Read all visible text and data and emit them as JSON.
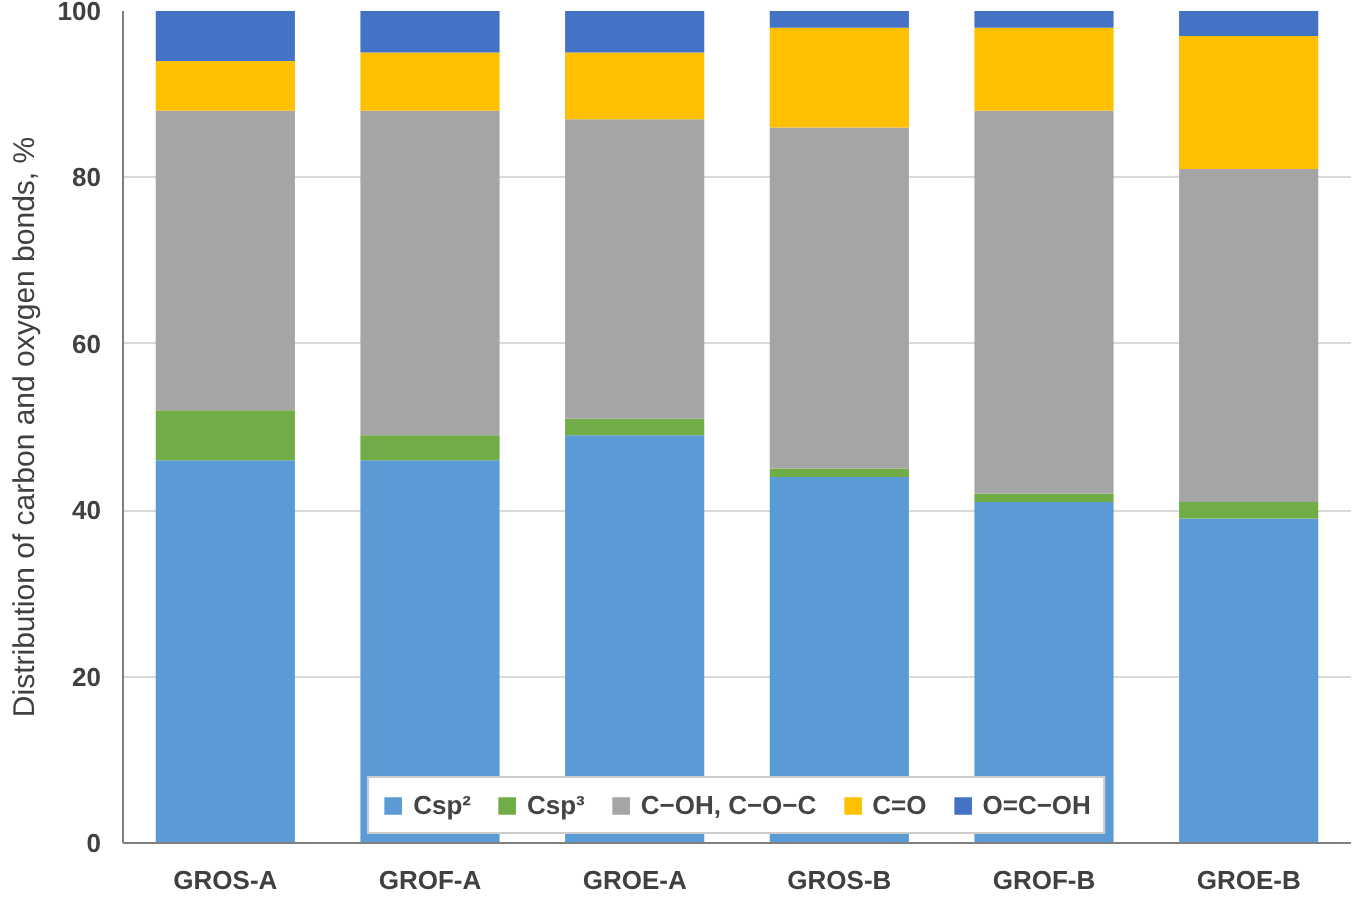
{
  "chart_data": {
    "type": "bar",
    "stacked": true,
    "ylabel": "Distribution of carbon and oxygen bonds, %",
    "categories": [
      "GROS-A",
      "GROF-A",
      "GROE-A",
      "GROS-B",
      "GROF-B",
      "GROE-B"
    ],
    "series": [
      {
        "name": "Csp²",
        "color": "#5b9bd5",
        "values": [
          46,
          46,
          49,
          44,
          41,
          39
        ]
      },
      {
        "name": "Csp³",
        "color": "#70ad47",
        "values": [
          6,
          3,
          2,
          1,
          1,
          2
        ]
      },
      {
        "name": "C−OH, C−O−C",
        "color": "#a5a5a5",
        "values": [
          36,
          39,
          36,
          41,
          46,
          40
        ]
      },
      {
        "name": "C=O",
        "color": "#ffc000",
        "values": [
          6,
          7,
          8,
          12,
          10,
          16
        ]
      },
      {
        "name": "O=C−OH",
        "color": "#4472c4",
        "values": [
          6,
          5,
          5,
          2,
          2,
          3
        ]
      }
    ],
    "ylim": [
      0,
      100
    ],
    "yticks": [
      0,
      20,
      40,
      60,
      80,
      100
    ],
    "grid": "y",
    "legend": "bottom"
  }
}
